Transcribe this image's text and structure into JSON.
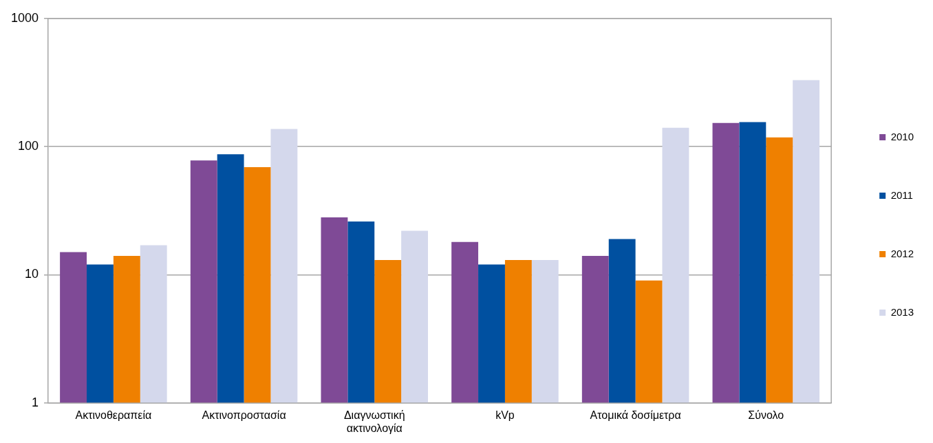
{
  "chart_data": {
    "type": "bar",
    "categories": [
      "Ακτινοθεραπεία",
      "Ακτινοπροστασία",
      "Διαγνωστική ακτινολογία",
      "kVp",
      "Ατομικά δοσίμετρα",
      "Σύνολο"
    ],
    "series": [
      {
        "name": "2010",
        "color": "#7f4a96",
        "values": [
          15,
          78,
          28,
          18,
          14,
          153
        ]
      },
      {
        "name": "2011",
        "color": "#0050a0",
        "values": [
          12,
          87,
          26,
          12,
          19,
          155
        ]
      },
      {
        "name": "2012",
        "color": "#ef8000",
        "values": [
          14,
          69,
          13,
          13,
          9,
          118
        ]
      },
      {
        "name": "2013",
        "color": "#d4d8ec",
        "values": [
          17,
          137,
          22,
          13,
          140,
          330
        ]
      }
    ],
    "log": true,
    "ylim": [
      1,
      1000
    ],
    "yticks": [
      1,
      10,
      100,
      1000
    ],
    "grid": "y",
    "legend": "right"
  }
}
